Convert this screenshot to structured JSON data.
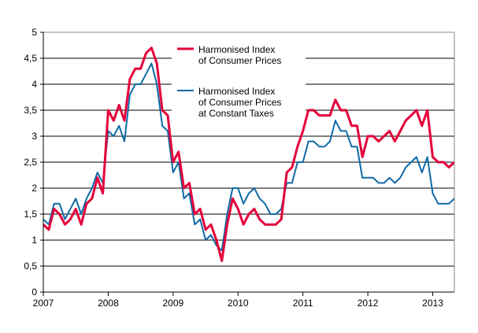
{
  "chart_data": {
    "type": "line",
    "title": "",
    "xlabel": "",
    "ylabel": "",
    "ylim": [
      0,
      5
    ],
    "yticks": [
      "0",
      "0,5",
      "1",
      "1,5",
      "2",
      "2,5",
      "3",
      "3,5",
      "4",
      "4,5",
      "5"
    ],
    "xticks": [
      "2007",
      "2008",
      "2009",
      "2010",
      "2011",
      "2012",
      "2013"
    ],
    "x_start": "2007-01",
    "x_end": "2013-05",
    "frequency": "monthly",
    "grid": true,
    "legend_placement": "top-center",
    "series": [
      {
        "name": "Harmonised Index of Consumer Prices",
        "legend_lines": [
          "Harmonised Index",
          "of Consumer Prices"
        ],
        "color": "#e4003a",
        "values": [
          1.3,
          1.2,
          1.6,
          1.5,
          1.3,
          1.4,
          1.6,
          1.3,
          1.7,
          1.8,
          2.2,
          1.9,
          3.5,
          3.3,
          3.6,
          3.3,
          4.1,
          4.3,
          4.3,
          4.6,
          4.7,
          4.4,
          3.5,
          3.4,
          2.5,
          2.7,
          2.0,
          2.1,
          1.5,
          1.6,
          1.2,
          1.3,
          1.0,
          0.6,
          1.3,
          1.8,
          1.6,
          1.3,
          1.5,
          1.6,
          1.4,
          1.3,
          1.3,
          1.3,
          1.4,
          2.3,
          2.4,
          2.8,
          3.1,
          3.5,
          3.5,
          3.4,
          3.4,
          3.4,
          3.7,
          3.5,
          3.5,
          3.2,
          3.2,
          2.6,
          3.0,
          3.0,
          2.9,
          3.0,
          3.1,
          2.9,
          3.1,
          3.3,
          3.4,
          3.5,
          3.2,
          3.5,
          2.6,
          2.5,
          2.5,
          2.4,
          2.5
        ]
      },
      {
        "name": "Harmonised Index of Consumer Prices at Constant Taxes",
        "legend_lines": [
          "Harmonised Index",
          "of Consumer Prices",
          "at Constant Taxes"
        ],
        "color": "#0f6aa6",
        "values": [
          1.4,
          1.3,
          1.7,
          1.7,
          1.4,
          1.6,
          1.8,
          1.5,
          1.8,
          2.0,
          2.3,
          2.1,
          3.1,
          3.0,
          3.2,
          2.9,
          3.8,
          4.0,
          4.0,
          4.2,
          4.4,
          4.0,
          3.2,
          3.1,
          2.3,
          2.5,
          1.8,
          1.9,
          1.3,
          1.4,
          1.0,
          1.1,
          0.9,
          0.8,
          1.5,
          2.0,
          2.0,
          1.7,
          1.9,
          2.0,
          1.8,
          1.7,
          1.5,
          1.5,
          1.6,
          2.1,
          2.1,
          2.5,
          2.5,
          2.9,
          2.9,
          2.8,
          2.8,
          2.9,
          3.3,
          3.1,
          3.1,
          2.8,
          2.8,
          2.2,
          2.2,
          2.2,
          2.1,
          2.1,
          2.2,
          2.1,
          2.2,
          2.4,
          2.5,
          2.6,
          2.3,
          2.6,
          1.9,
          1.7,
          1.7,
          1.7,
          1.8
        ]
      }
    ]
  }
}
